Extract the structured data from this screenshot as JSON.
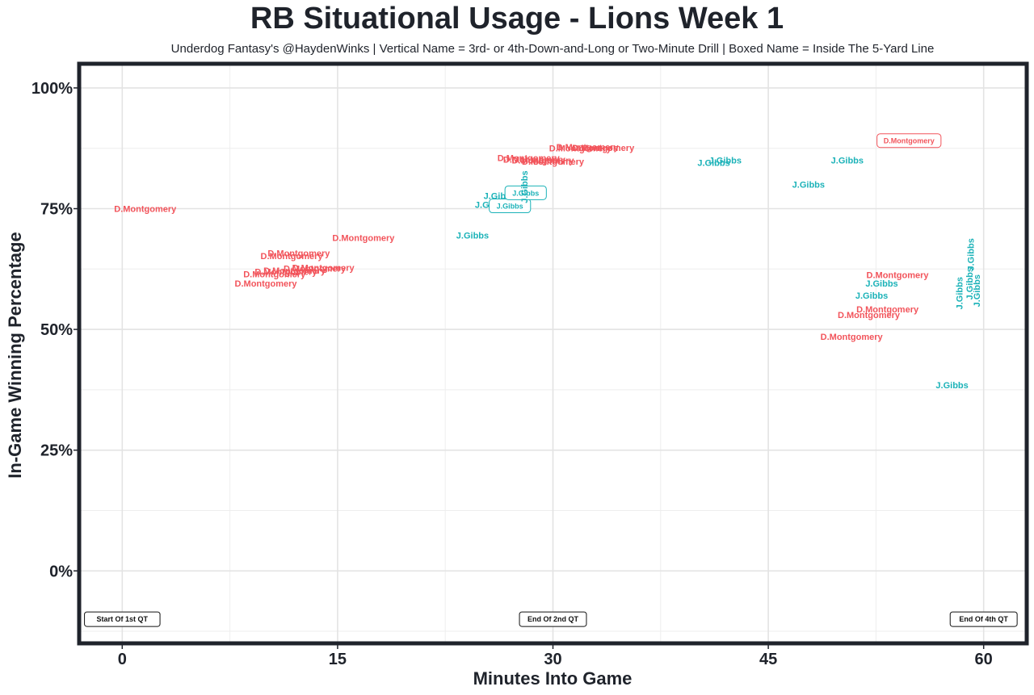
{
  "chart_data": {
    "type": "scatter",
    "title": "RB Situational Usage - Lions Week 1",
    "subtitle": "Underdog Fantasy's @HaydenWinks | Vertical Name = 3rd- or 4th-Down-and-Long or Two-Minute Drill | Boxed Name = Inside The 5-Yard Line",
    "xlabel": "Minutes Into Game",
    "ylabel": "In-Game Winning Percentage",
    "xlim": [
      -3,
      63
    ],
    "ylim": [
      -15,
      105
    ],
    "x_ticks": [
      0,
      15,
      30,
      45,
      60
    ],
    "x_tick_labels": [
      "0",
      "15",
      "30",
      "45",
      "60"
    ],
    "y_ticks": [
      0,
      25,
      50,
      75,
      100
    ],
    "y_tick_labels": [
      "0%",
      "25%",
      "50%",
      "75%",
      "100%"
    ],
    "grid": true,
    "colors": {
      "D.Montgomery": "#f2545b",
      "J.Gibbs": "#1bb2b8",
      "frame": "#1f232b"
    },
    "series": [
      {
        "name": "D.Montgomery",
        "color": "#f2545b",
        "points": [
          {
            "x": 1.6,
            "y": 75.0,
            "label": "D.Montgomery",
            "style": "plain"
          },
          {
            "x": 10.0,
            "y": 59.5,
            "label": "D.Montgomery",
            "style": "plain"
          },
          {
            "x": 10.6,
            "y": 61.5,
            "label": "D.Montgomery",
            "style": "plain"
          },
          {
            "x": 11.4,
            "y": 62.0,
            "label": "D.Montgomery",
            "style": "plain"
          },
          {
            "x": 12.0,
            "y": 62.2,
            "label": "D.Montgomery",
            "style": "plain"
          },
          {
            "x": 13.4,
            "y": 62.6,
            "label": "D.Montgomery",
            "style": "plain"
          },
          {
            "x": 14.0,
            "y": 62.8,
            "label": "D.Montgomery",
            "style": "plain"
          },
          {
            "x": 11.8,
            "y": 65.2,
            "label": "D.Montgomery",
            "style": "plain"
          },
          {
            "x": 12.3,
            "y": 65.8,
            "label": "D.Montgomery",
            "style": "plain"
          },
          {
            "x": 16.8,
            "y": 69.0,
            "label": "D.Montgomery",
            "style": "plain"
          },
          {
            "x": 28.3,
            "y": 85.5,
            "label": "D.Montgomery",
            "style": "plain"
          },
          {
            "x": 28.7,
            "y": 85.2,
            "label": "D.Montgomery",
            "style": "plain"
          },
          {
            "x": 29.3,
            "y": 85.0,
            "label": "D.Montgomery",
            "style": "plain"
          },
          {
            "x": 30.0,
            "y": 84.8,
            "label": "D.Montgomery",
            "style": "plain"
          },
          {
            "x": 31.9,
            "y": 87.5,
            "label": "D.Montgomery",
            "style": "plain"
          },
          {
            "x": 32.4,
            "y": 87.8,
            "label": "D.Montgomery",
            "style": "plain"
          },
          {
            "x": 33.5,
            "y": 87.6,
            "label": "D.Montgomery",
            "style": "plain"
          },
          {
            "x": 54.8,
            "y": 89.0,
            "label": "D.Montgomery",
            "style": "boxed"
          },
          {
            "x": 54.0,
            "y": 61.3,
            "label": "D.Montgomery",
            "style": "plain"
          },
          {
            "x": 53.3,
            "y": 54.2,
            "label": "D.Montgomery",
            "style": "plain"
          },
          {
            "x": 52.0,
            "y": 53.0,
            "label": "D.Montgomery",
            "style": "plain"
          },
          {
            "x": 50.8,
            "y": 48.5,
            "label": "D.Montgomery",
            "style": "plain"
          }
        ]
      },
      {
        "name": "J.Gibbs",
        "color": "#1bb2b8",
        "points": [
          {
            "x": 24.4,
            "y": 69.5,
            "label": "J.Gibbs",
            "style": "plain"
          },
          {
            "x": 25.7,
            "y": 75.8,
            "label": "J.Gibbs",
            "style": "plain"
          },
          {
            "x": 26.3,
            "y": 77.7,
            "label": "J.Gibbs",
            "style": "plain"
          },
          {
            "x": 27.0,
            "y": 75.5,
            "label": "J.Gibbs",
            "style": "boxed"
          },
          {
            "x": 28.1,
            "y": 78.2,
            "label": "J.Gibbs",
            "style": "boxed"
          },
          {
            "x": 28.0,
            "y": 79.5,
            "label": "J.Gibbs",
            "style": "vertical"
          },
          {
            "x": 41.2,
            "y": 84.5,
            "label": "J.Gibbs",
            "style": "plain"
          },
          {
            "x": 42.0,
            "y": 85.0,
            "label": "J.Gibbs",
            "style": "plain"
          },
          {
            "x": 47.8,
            "y": 80.0,
            "label": "J.Gibbs",
            "style": "plain"
          },
          {
            "x": 50.5,
            "y": 85.0,
            "label": "J.Gibbs",
            "style": "plain"
          },
          {
            "x": 52.9,
            "y": 59.5,
            "label": "J.Gibbs",
            "style": "plain"
          },
          {
            "x": 52.2,
            "y": 57.0,
            "label": "J.Gibbs",
            "style": "plain"
          },
          {
            "x": 57.8,
            "y": 38.5,
            "label": "J.Gibbs",
            "style": "plain"
          },
          {
            "x": 58.3,
            "y": 57.5,
            "label": "J.Gibbs",
            "style": "vertical"
          },
          {
            "x": 59.0,
            "y": 59.5,
            "label": "J.Gibbs",
            "style": "vertical"
          },
          {
            "x": 59.5,
            "y": 58.0,
            "label": "J.Gibbs",
            "style": "vertical"
          },
          {
            "x": 59.1,
            "y": 65.5,
            "label": "J.Gibbs",
            "style": "vertical"
          }
        ]
      }
    ],
    "annotations": [
      {
        "x": 0,
        "y": -10,
        "text": "Start Of 1st QT"
      },
      {
        "x": 30,
        "y": -10,
        "text": "End Of 2nd QT"
      },
      {
        "x": 60,
        "y": -10,
        "text": "End Of 4th QT"
      }
    ]
  }
}
